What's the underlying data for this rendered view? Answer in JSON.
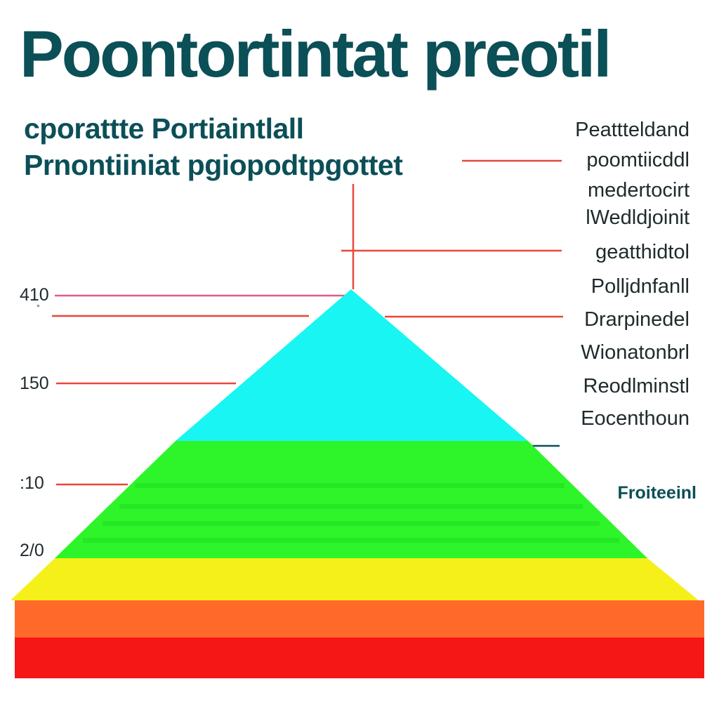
{
  "title": "Poontortintat preotil",
  "subtitle": {
    "line1": "cporattte Portiaintlall",
    "line2": "Prnontiiniat pgiopodtpgottet"
  },
  "right_labels": [
    "Peattteldand",
    "poomtiicddl",
    "medertocirt",
    "lWedldjoinit",
    "geatthidtol",
    "Polljdnfanll",
    "Drarpinedel",
    "Wionatonbrl",
    "Reodlminstl",
    "Eocenthoun"
  ],
  "axis_labels": [
    "410",
    "150",
    ":10",
    "2/0"
  ],
  "axis_dot": "°",
  "side_note": "Froiteeinl",
  "colors": {
    "title": "#0b4f57",
    "leader_line": "#e8473a",
    "leader_line_pink": "#e05a8a",
    "layer_cyan": "#19f5f2",
    "layer_green": "#2ef52a",
    "layer_yellow": "#f5f01a",
    "layer_orange": "#ff6a2a",
    "layer_red": "#f51616"
  }
}
